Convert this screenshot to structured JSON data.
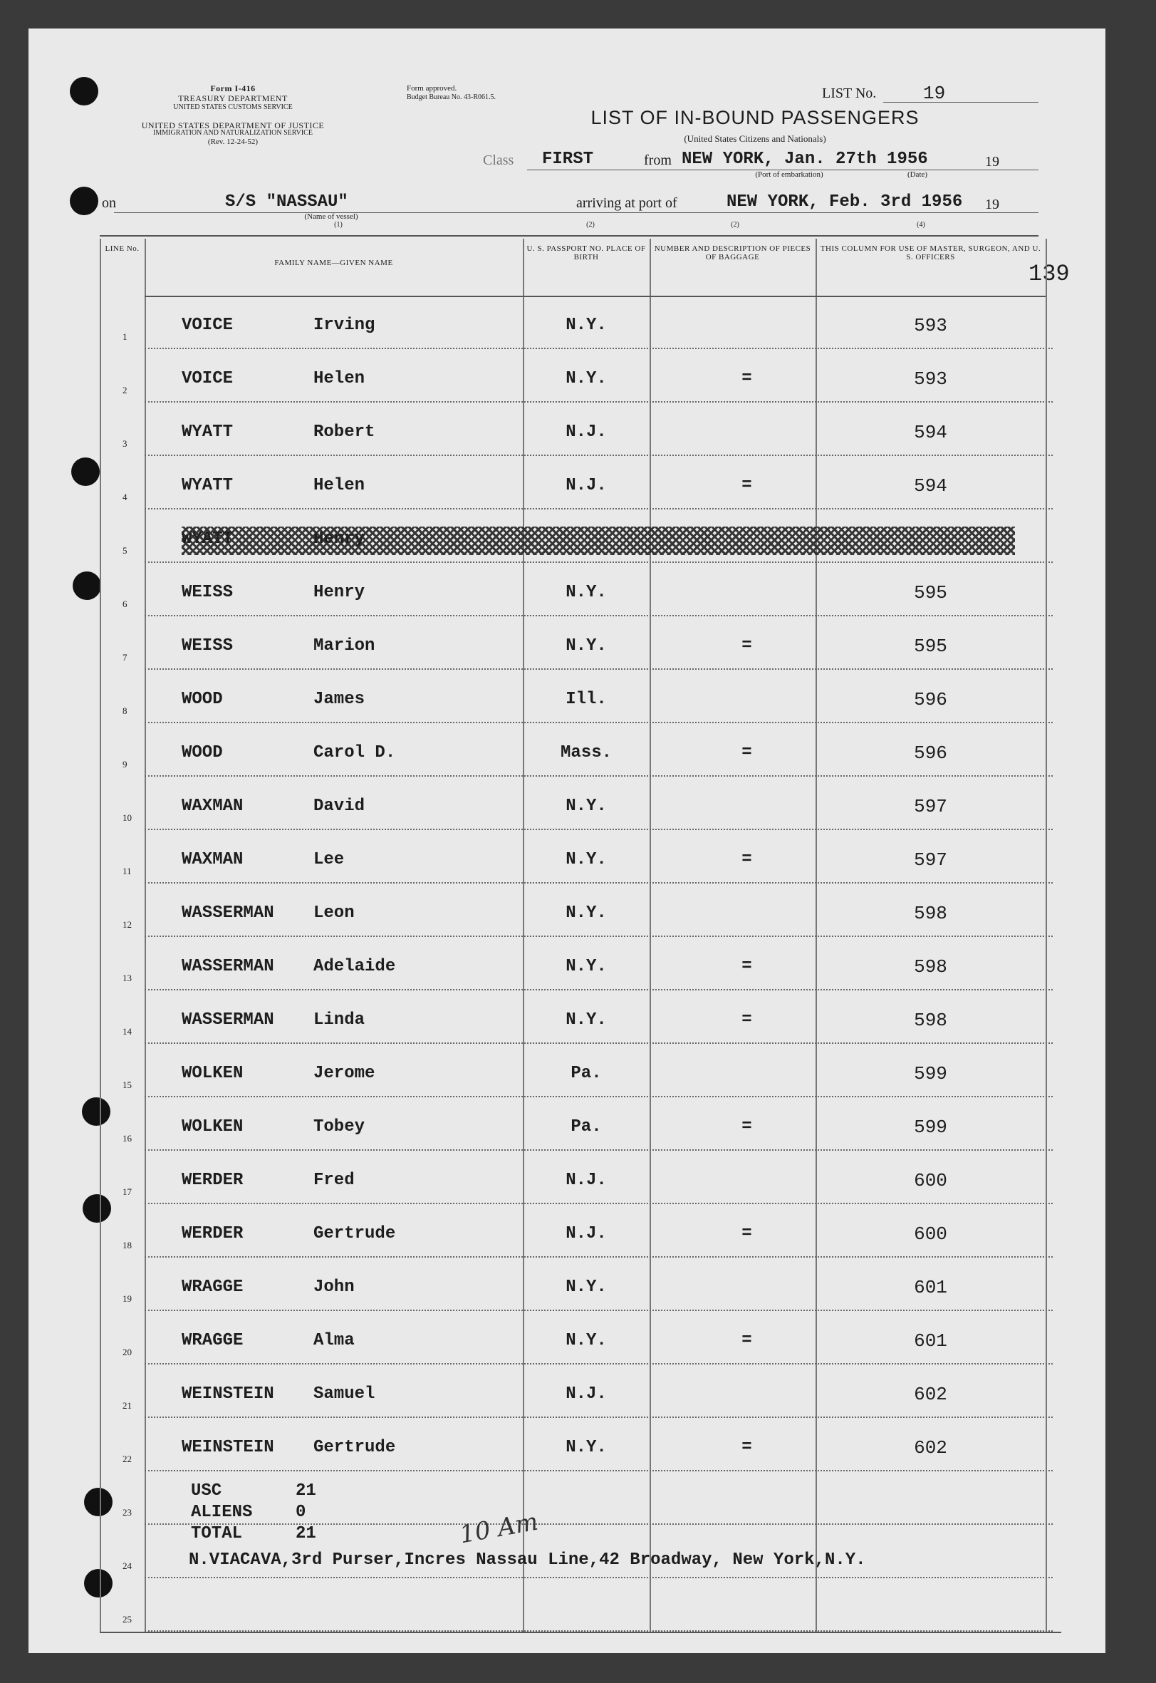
{
  "header": {
    "form_id": "Form I-416",
    "dept1": "TREASURY DEPARTMENT",
    "service1": "UNITED STATES CUSTOMS SERVICE",
    "dept2": "UNITED STATES DEPARTMENT OF JUSTICE",
    "service2": "IMMIGRATION AND NATURALIZATION SERVICE",
    "revision": "(Rev. 12-24-52)",
    "approved": "Form approved.",
    "budget": "Budget Bureau No. 43-R061.5.",
    "list_no_label": "LIST No.",
    "list_no": "19",
    "title": "LIST OF IN-BOUND PASSENGERS",
    "subtitle": "(United States Citizens and Nationals)",
    "class_label": "Class",
    "class": "FIRST",
    "from_label": "from",
    "embarkation": "NEW YORK, Jan. 27th 1956",
    "year_prefix1": "19",
    "embarkation_caption": "(Port of embarkation)",
    "date_caption": "(Date)",
    "on_label": "on",
    "vessel": "S/S \"NASSAU\"",
    "vessel_caption": "(Name of vessel)",
    "vessel_note": "(1)",
    "arriving_label": "arriving at port of",
    "arrival": "NEW YORK, Feb. 3rd 1956",
    "year_prefix2": "19",
    "note_a": "(2)",
    "note_b": "(2)",
    "note_c": "(4)",
    "page_number": "139"
  },
  "table": {
    "columns": [
      "LINE No.",
      "FAMILY NAME—GIVEN NAME",
      "U. S. PASSPORT NO. PLACE OF BIRTH",
      "NUMBER AND DESCRIPTION OF PIECES OF BAGGAGE",
      "THIS COLUMN FOR USE OF MASTER, SURGEON, AND U. S. OFFICERS"
    ],
    "rows": [
      {
        "line": 1,
        "family": "VOICE",
        "given": "Irving",
        "birth": "N.Y.",
        "officer": "593"
      },
      {
        "line": 2,
        "family": "VOICE",
        "given": "Helen",
        "birth": "N.Y.",
        "baggage": "=",
        "officer": "593"
      },
      {
        "line": 3,
        "family": "WYATT",
        "given": "Robert",
        "birth": "N.J.",
        "officer": "594"
      },
      {
        "line": 4,
        "family": "WYATT",
        "given": "Helen",
        "birth": "N.J.",
        "baggage": "=",
        "officer": "594"
      },
      {
        "line": 5,
        "family": "WYATT",
        "given": "Henry",
        "struck": true
      },
      {
        "line": 6,
        "family": "WEISS",
        "given": "Henry",
        "birth": "N.Y.",
        "officer": "595"
      },
      {
        "line": 7,
        "family": "WEISS",
        "given": "Marion",
        "birth": "N.Y.",
        "baggage": "=",
        "officer": "595"
      },
      {
        "line": 8,
        "family": "WOOD",
        "given": "James",
        "birth": "Ill.",
        "officer": "596"
      },
      {
        "line": 9,
        "family": "WOOD",
        "given": "Carol D.",
        "birth": "Mass.",
        "baggage": "=",
        "officer": "596"
      },
      {
        "line": 10,
        "family": "WAXMAN",
        "given": "David",
        "birth": "N.Y.",
        "officer": "597"
      },
      {
        "line": 11,
        "family": "WAXMAN",
        "given": "Lee",
        "birth": "N.Y.",
        "baggage": "=",
        "officer": "597"
      },
      {
        "line": 12,
        "family": "WASSERMAN",
        "given": "Leon",
        "birth": "N.Y.",
        "officer": "598"
      },
      {
        "line": 13,
        "family": "WASSERMAN",
        "given": "Adelaide",
        "birth": "N.Y.",
        "baggage": "=",
        "officer": "598"
      },
      {
        "line": 14,
        "family": "WASSERMAN",
        "given": "Linda",
        "birth": "N.Y.",
        "baggage": "=",
        "officer": "598"
      },
      {
        "line": 15,
        "family": "WOLKEN",
        "given": "Jerome",
        "birth": "Pa.",
        "officer": "599"
      },
      {
        "line": 16,
        "family": "WOLKEN",
        "given": "Tobey",
        "birth": "Pa.",
        "baggage": "=",
        "officer": "599"
      },
      {
        "line": 17,
        "family": "WERDER",
        "given": "Fred",
        "birth": "N.J.",
        "officer": "600"
      },
      {
        "line": 18,
        "family": "WERDER",
        "given": "Gertrude",
        "birth": "N.J.",
        "baggage": "=",
        "officer": "600"
      },
      {
        "line": 19,
        "family": "WRAGGE",
        "given": "John",
        "birth": "N.Y.",
        "officer": "601"
      },
      {
        "line": 20,
        "family": "WRAGGE",
        "given": "Alma",
        "birth": "N.Y.",
        "baggage": "=",
        "officer": "601"
      },
      {
        "line": 21,
        "family": "WEINSTEIN",
        "given": "Samuel",
        "birth": "N.J.",
        "officer": "602"
      },
      {
        "line": 22,
        "family": "WEINSTEIN",
        "given": "Gertrude",
        "birth": "N.Y.",
        "baggage": "=",
        "officer": "602"
      },
      {
        "line": 23
      },
      {
        "line": 24
      },
      {
        "line": 25
      }
    ]
  },
  "summary": {
    "usc_label": "USC",
    "usc": "21",
    "aliens_label": "ALIENS",
    "aliens": "0",
    "total_label": "TOTAL",
    "total": "21",
    "note": "10 Am"
  },
  "footer": {
    "purser": "N.VIACAVA,3rd Purser,Incres Nassau Line,42 Broadway, New York,N.Y."
  }
}
